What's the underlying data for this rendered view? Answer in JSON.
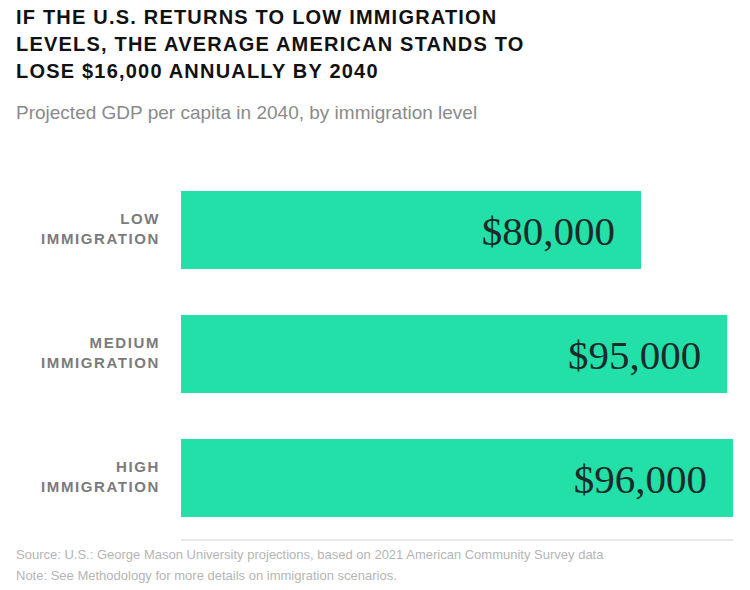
{
  "chart_data": {
    "type": "bar",
    "orientation": "horizontal",
    "title": "IF THE U.S. RETURNS TO LOW IMMIGRATION LEVELS, THE AVERAGE AMERICAN STANDS TO LOSE $16,000 ANNUALLY BY 2040",
    "subtitle": "Projected GDP per capita in 2040, by immigration level",
    "categories": [
      "LOW IMMIGRATION",
      "MEDIUM IMMIGRATION",
      "HIGH IMMIGRATION"
    ],
    "values": [
      80000,
      95000,
      96000
    ],
    "value_labels": [
      "$80,000",
      "$95,000",
      "$96,000"
    ],
    "data_labels": true,
    "color": "#23e0a8",
    "xlim": [
      0,
      96000
    ],
    "tick_labels": "y",
    "grid": false,
    "source": "Source: U.S.: George Mason University projections, based on 2021 American Community Survey data",
    "note": "Note: See Methodology for more details on immigration scenarios."
  }
}
